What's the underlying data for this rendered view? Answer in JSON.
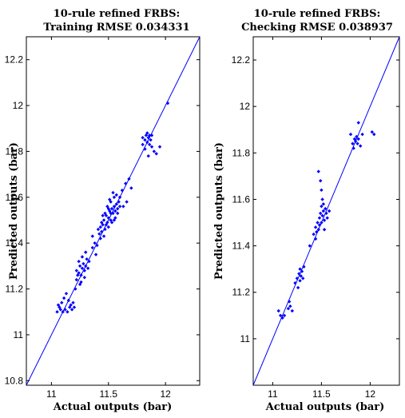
{
  "chart_data": [
    {
      "type": "scatter",
      "title": [
        "10-rule refined FRBS:",
        "Training RMSE 0.034331"
      ],
      "xlabel": "Actual outputs (bar)",
      "ylabel": "Predicted outputs (bar)",
      "xlim": [
        10.78,
        12.3
      ],
      "ylim": [
        10.78,
        12.3
      ],
      "xticks": [
        11,
        11.5,
        12
      ],
      "xtick_labels": [
        "11",
        "11.5",
        "12"
      ],
      "yticks": [
        10.8,
        11,
        11.2,
        11.4,
        11.6,
        11.8,
        12,
        12.2
      ],
      "ytick_labels": [
        "10.8",
        "11",
        "11.2",
        "11.4",
        "11.6",
        "11.8",
        "12",
        "12.2"
      ],
      "reference_line": "y = x",
      "grid": false,
      "color": "#0000ff",
      "points": [
        [
          11.05,
          11.1
        ],
        [
          11.07,
          11.12
        ],
        [
          11.08,
          11.11
        ],
        [
          11.1,
          11.1
        ],
        [
          11.12,
          11.11
        ],
        [
          11.14,
          11.1
        ],
        [
          11.16,
          11.12
        ],
        [
          11.18,
          11.11
        ],
        [
          11.2,
          11.12
        ],
        [
          11.09,
          11.14
        ],
        [
          11.11,
          11.16
        ],
        [
          11.13,
          11.18
        ],
        [
          11.15,
          11.15
        ],
        [
          11.17,
          11.13
        ],
        [
          11.19,
          11.14
        ],
        [
          11.06,
          11.13
        ],
        [
          11.21,
          11.2
        ],
        [
          11.22,
          11.24
        ],
        [
          11.24,
          11.27
        ],
        [
          11.25,
          11.22
        ],
        [
          11.26,
          11.26
        ],
        [
          11.27,
          11.29
        ],
        [
          11.28,
          11.31
        ],
        [
          11.29,
          11.28
        ],
        [
          11.3,
          11.3
        ],
        [
          11.31,
          11.33
        ],
        [
          11.32,
          11.29
        ],
        [
          11.33,
          11.32
        ],
        [
          11.27,
          11.34
        ],
        [
          11.25,
          11.3
        ],
        [
          11.22,
          11.28
        ],
        [
          11.3,
          11.36
        ],
        [
          11.29,
          11.25
        ],
        [
          11.23,
          11.26
        ],
        [
          11.26,
          11.23
        ],
        [
          11.24,
          11.32
        ],
        [
          11.36,
          11.38
        ],
        [
          11.38,
          11.4
        ],
        [
          11.4,
          11.39
        ],
        [
          11.42,
          11.44
        ],
        [
          11.41,
          11.46
        ],
        [
          11.43,
          11.47
        ],
        [
          11.44,
          11.45
        ],
        [
          11.45,
          11.48
        ],
        [
          11.46,
          11.5
        ],
        [
          11.47,
          11.46
        ],
        [
          11.48,
          11.52
        ],
        [
          11.49,
          11.49
        ],
        [
          11.5,
          11.51
        ],
        [
          11.51,
          11.54
        ],
        [
          11.52,
          11.5
        ],
        [
          11.53,
          11.55
        ],
        [
          11.54,
          11.53
        ],
        [
          11.55,
          11.56
        ],
        [
          11.56,
          11.54
        ],
        [
          11.57,
          11.57
        ],
        [
          11.58,
          11.55
        ],
        [
          11.59,
          11.58
        ],
        [
          11.6,
          11.56
        ],
        [
          11.55,
          11.6
        ],
        [
          11.52,
          11.58
        ],
        [
          11.49,
          11.56
        ],
        [
          11.47,
          11.53
        ],
        [
          11.45,
          11.52
        ],
        [
          11.5,
          11.47
        ],
        [
          11.53,
          11.49
        ],
        [
          11.56,
          11.51
        ],
        [
          11.58,
          11.53
        ],
        [
          11.46,
          11.43
        ],
        [
          11.44,
          11.49
        ],
        [
          11.51,
          11.59
        ],
        [
          11.54,
          11.62
        ],
        [
          11.57,
          11.61
        ],
        [
          11.6,
          11.6
        ],
        [
          11.48,
          11.48
        ],
        [
          11.52,
          11.53
        ],
        [
          11.55,
          11.5
        ],
        [
          11.5,
          11.55
        ],
        [
          11.62,
          11.63
        ],
        [
          11.65,
          11.66
        ],
        [
          11.68,
          11.68
        ],
        [
          11.7,
          11.64
        ],
        [
          11.66,
          11.58
        ],
        [
          11.63,
          11.56
        ],
        [
          11.43,
          11.42
        ],
        [
          11.39,
          11.35
        ],
        [
          11.36,
          11.43
        ],
        [
          11.8,
          11.83
        ],
        [
          11.82,
          11.85
        ],
        [
          11.83,
          11.87
        ],
        [
          11.84,
          11.84
        ],
        [
          11.85,
          11.86
        ],
        [
          11.86,
          11.83
        ],
        [
          11.87,
          11.85
        ],
        [
          11.88,
          11.82
        ],
        [
          11.82,
          11.81
        ],
        [
          11.84,
          11.88
        ],
        [
          11.86,
          11.87
        ],
        [
          11.88,
          11.87
        ],
        [
          11.9,
          11.8
        ],
        [
          11.92,
          11.79
        ],
        [
          11.95,
          11.82
        ],
        [
          11.85,
          11.78
        ],
        [
          11.8,
          11.86
        ],
        [
          12.02,
          12.01
        ]
      ]
    },
    {
      "type": "scatter",
      "title": [
        "10-rule refined FRBS:",
        "Checking RMSE 0.038937"
      ],
      "xlabel": "Actual outputs (bar)",
      "ylabel": "Predicted outputs (bar)",
      "xlim": [
        10.8,
        12.3
      ],
      "ylim": [
        10.8,
        12.3
      ],
      "xticks": [
        11,
        11.5,
        12
      ],
      "xtick_labels": [
        "11",
        "11.5",
        "12"
      ],
      "yticks": [
        11,
        11.2,
        11.4,
        11.6,
        11.8,
        12,
        12.2
      ],
      "ytick_labels": [
        "11",
        "11.2",
        "11.4",
        "11.6",
        "11.8",
        "12",
        "12.2"
      ],
      "reference_line": "y = x",
      "grid": false,
      "color": "#0000ff",
      "points": [
        [
          11.06,
          11.12
        ],
        [
          11.08,
          11.1
        ],
        [
          11.1,
          11.09
        ],
        [
          11.12,
          11.1
        ],
        [
          11.16,
          11.13
        ],
        [
          11.18,
          11.14
        ],
        [
          11.2,
          11.12
        ],
        [
          11.17,
          11.16
        ],
        [
          11.25,
          11.26
        ],
        [
          11.27,
          11.28
        ],
        [
          11.28,
          11.3
        ],
        [
          11.29,
          11.27
        ],
        [
          11.3,
          11.29
        ],
        [
          11.31,
          11.26
        ],
        [
          11.26,
          11.22
        ],
        [
          11.23,
          11.24
        ],
        [
          11.32,
          11.31
        ],
        [
          11.28,
          11.25
        ],
        [
          11.38,
          11.4
        ],
        [
          11.42,
          11.45
        ],
        [
          11.44,
          11.48
        ],
        [
          11.46,
          11.5
        ],
        [
          11.47,
          11.47
        ],
        [
          11.48,
          11.52
        ],
        [
          11.49,
          11.54
        ],
        [
          11.5,
          11.5
        ],
        [
          11.51,
          11.53
        ],
        [
          11.52,
          11.55
        ],
        [
          11.53,
          11.51
        ],
        [
          11.54,
          11.56
        ],
        [
          11.55,
          11.54
        ],
        [
          11.48,
          11.49
        ],
        [
          11.5,
          11.57
        ],
        [
          11.52,
          11.58
        ],
        [
          11.53,
          11.47
        ],
        [
          11.56,
          11.52
        ],
        [
          11.45,
          11.46
        ],
        [
          11.51,
          11.6
        ],
        [
          11.5,
          11.64
        ],
        [
          11.49,
          11.68
        ],
        [
          11.47,
          11.72
        ],
        [
          11.58,
          11.55
        ],
        [
          11.44,
          11.43
        ],
        [
          11.82,
          11.84
        ],
        [
          11.84,
          11.86
        ],
        [
          11.85,
          11.85
        ],
        [
          11.86,
          11.87
        ],
        [
          11.87,
          11.84
        ],
        [
          11.88,
          11.86
        ],
        [
          11.83,
          11.82
        ],
        [
          11.9,
          11.83
        ],
        [
          11.92,
          11.88
        ],
        [
          12.02,
          11.89
        ],
        [
          12.04,
          11.88
        ],
        [
          11.8,
          11.88
        ],
        [
          11.88,
          11.93
        ]
      ]
    }
  ]
}
